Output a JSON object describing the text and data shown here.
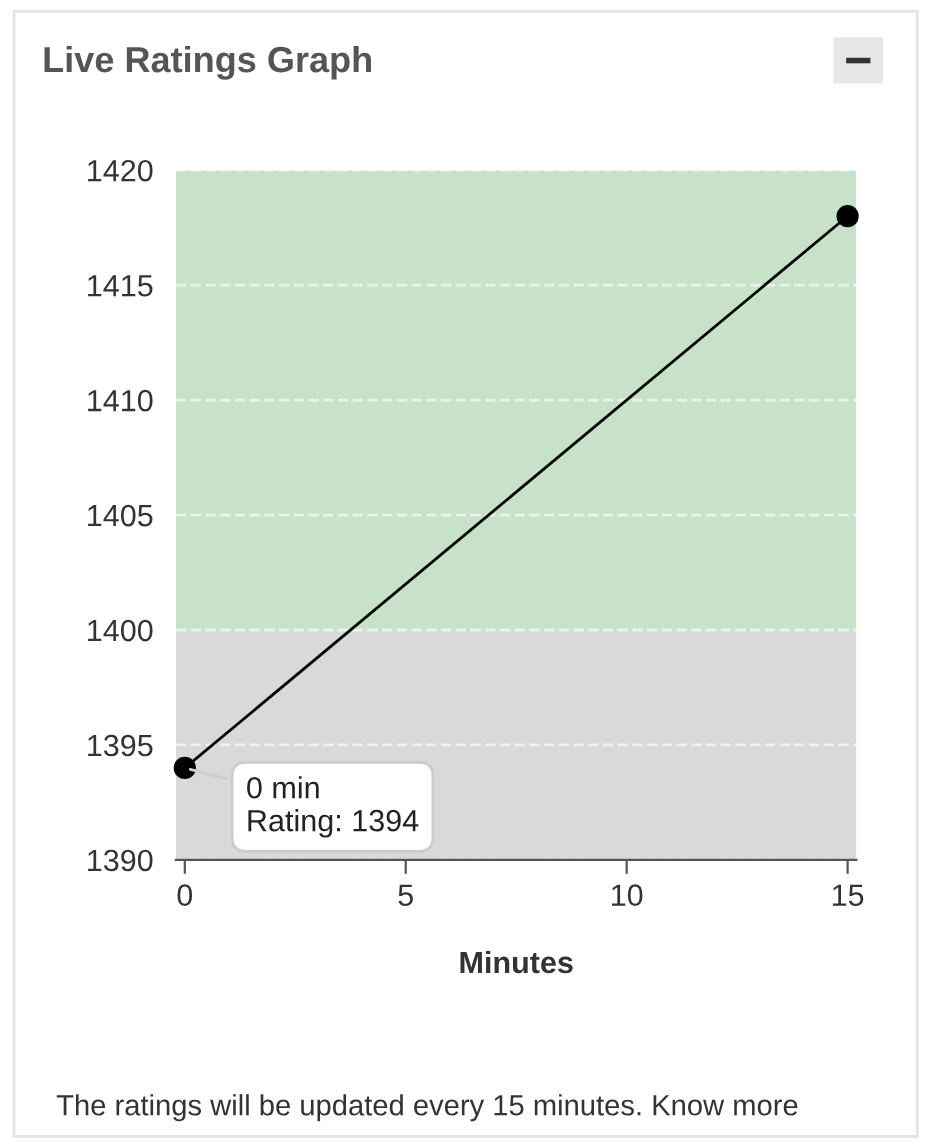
{
  "chart_data": {
    "type": "line",
    "title": "Live Ratings Graph",
    "xlabel": "Minutes",
    "x": [
      0,
      15
    ],
    "series": [
      {
        "color": "#000000",
        "values": [
          1394,
          1418
        ]
      }
    ],
    "xlim": [
      -0.2,
      15.2
    ],
    "ylim": [
      1390,
      1420
    ],
    "xticks": [
      0,
      5,
      10,
      15
    ],
    "yticks": [
      1390,
      1395,
      1400,
      1405,
      1410,
      1415,
      1420
    ],
    "bands": [
      {
        "axis": "y",
        "from": 1400,
        "to": 1420,
        "color": "#c8e2c9"
      },
      {
        "axis": "y",
        "from": 1390,
        "to": 1400,
        "color": "#d9d9d9"
      }
    ],
    "grid": "y",
    "marker": "circle",
    "line_style": "solid",
    "legend": false,
    "annotations": [
      {
        "text": "0 min\nRating: 1394",
        "x": 0,
        "y": 1394
      },
      "The ratings will be updated every 15 minutes. Know more"
    ]
  }
}
